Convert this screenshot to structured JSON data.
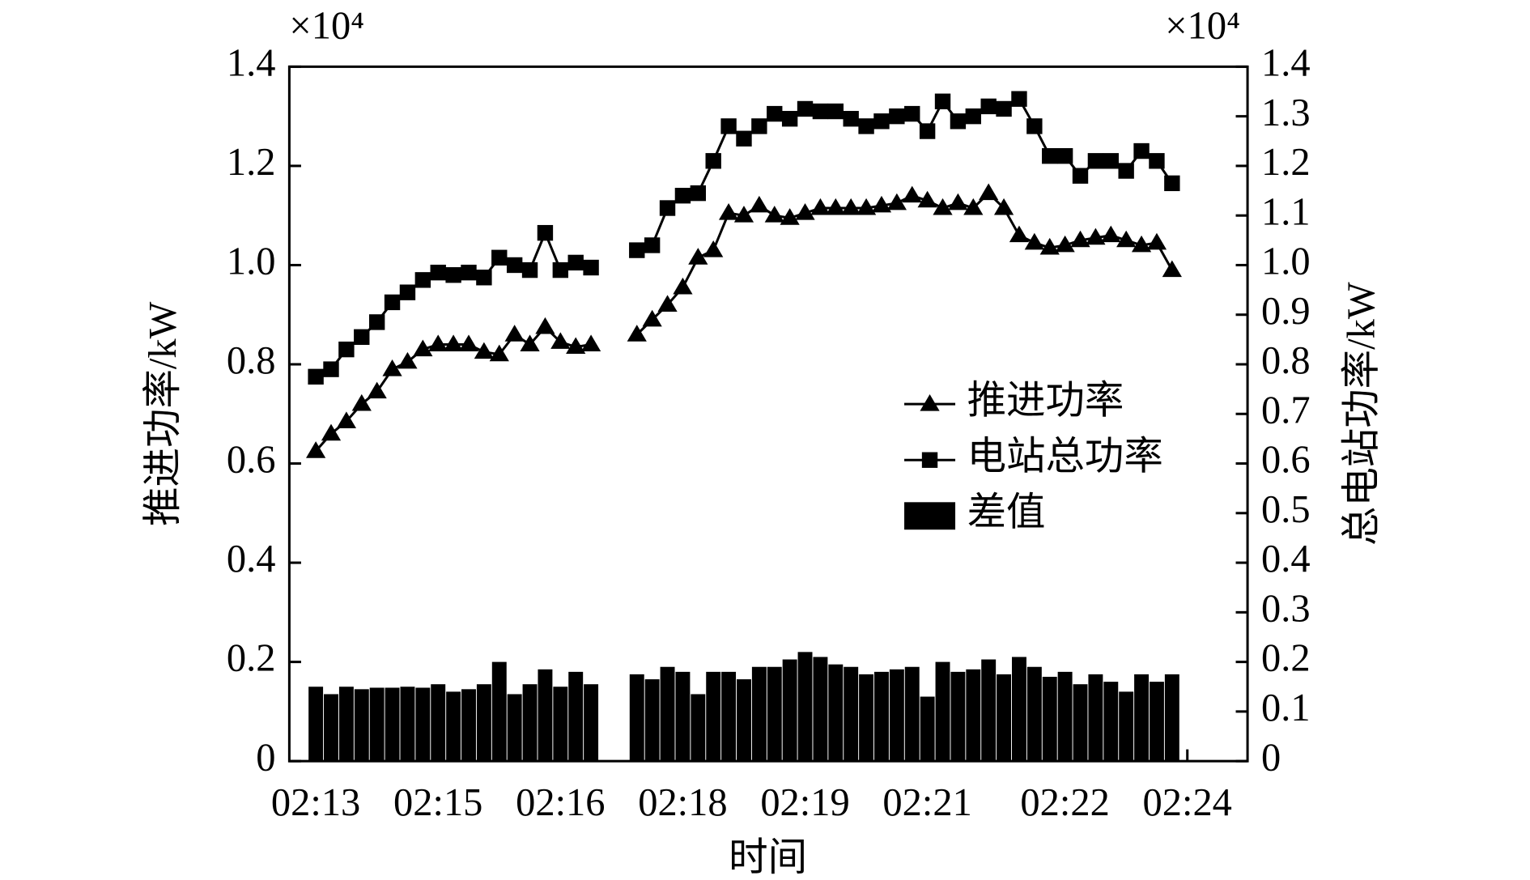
{
  "chart_data": {
    "type": "combo",
    "y_multiplier": "×10⁴",
    "y2_multiplier": "×10⁴",
    "xlabel": "时间",
    "ylabel": "推进功率/kW",
    "y2label": "总电站功率/kW",
    "legend_loc": "center right",
    "categories": [
      "02:13",
      null,
      null,
      null,
      null,
      null,
      null,
      null,
      "02:15",
      null,
      null,
      null,
      null,
      null,
      null,
      null,
      "02:16",
      null,
      null,
      null,
      null,
      null,
      null,
      null,
      "02:18",
      null,
      null,
      null,
      null,
      null,
      null,
      null,
      "02:19",
      null,
      null,
      null,
      null,
      null,
      null,
      null,
      "02:21",
      null,
      null,
      null,
      null,
      null,
      null,
      null,
      null,
      "02:22",
      null,
      null,
      null,
      null,
      null,
      null,
      null,
      "02:24"
    ],
    "series": [
      {
        "name": "推进功率",
        "type": "line",
        "marker": "triangle",
        "color": "#000000",
        "values": [
          0.625,
          0.66,
          0.685,
          0.72,
          0.745,
          0.79,
          0.805,
          0.83,
          0.84,
          0.84,
          0.84,
          0.825,
          0.82,
          0.86,
          0.84,
          0.875,
          0.845,
          0.835,
          0.84,
          null,
          null,
          0.86,
          0.89,
          0.92,
          0.955,
          1.015,
          1.03,
          1.105,
          1.1,
          1.12,
          1.1,
          1.095,
          1.105,
          1.115,
          1.115,
          1.115,
          1.115,
          1.12,
          1.125,
          1.14,
          1.13,
          1.115,
          1.125,
          1.115,
          1.145,
          1.115,
          1.06,
          1.045,
          1.035,
          1.04,
          1.05,
          1.055,
          1.06,
          1.05,
          1.04,
          1.045,
          0.99,
          null
        ]
      },
      {
        "name": "电站总功率",
        "type": "line",
        "marker": "square",
        "color": "#000000",
        "axis": "y2",
        "values": [
          0.775,
          0.79,
          0.83,
          0.855,
          0.885,
          0.925,
          0.945,
          0.97,
          0.985,
          0.98,
          0.985,
          0.975,
          1.015,
          1.0,
          0.99,
          1.065,
          0.99,
          1.005,
          0.995,
          null,
          null,
          1.03,
          1.04,
          1.115,
          1.14,
          1.145,
          1.21,
          1.28,
          1.255,
          1.28,
          1.305,
          1.295,
          1.315,
          1.31,
          1.31,
          1.295,
          1.28,
          1.29,
          1.3,
          1.305,
          1.27,
          1.33,
          1.29,
          1.3,
          1.32,
          1.315,
          1.335,
          1.28,
          1.22,
          1.22,
          1.18,
          1.21,
          1.21,
          1.19,
          1.23,
          1.21,
          1.165,
          null
        ]
      },
      {
        "name": "差值",
        "type": "bar",
        "color": "#000000",
        "values": [
          0.15,
          0.135,
          0.15,
          0.145,
          0.148,
          0.148,
          0.15,
          0.148,
          0.155,
          0.14,
          0.145,
          0.155,
          0.2,
          0.135,
          0.155,
          0.185,
          0.15,
          0.18,
          0.155,
          null,
          null,
          0.175,
          0.165,
          0.19,
          0.18,
          0.135,
          0.18,
          0.18,
          0.165,
          0.19,
          0.19,
          0.205,
          0.22,
          0.21,
          0.195,
          0.19,
          0.175,
          0.18,
          0.185,
          0.19,
          0.13,
          0.2,
          0.18,
          0.185,
          0.205,
          0.175,
          0.21,
          0.19,
          0.17,
          0.18,
          0.155,
          0.175,
          0.16,
          0.14,
          0.175,
          0.16,
          0.175,
          null
        ]
      }
    ],
    "ylim": [
      0,
      1.4
    ],
    "yticks": [
      0,
      0.2,
      0.4,
      0.6,
      0.8,
      {
        "value": 1.0,
        "label": "1.0"
      },
      1.2,
      1.4
    ],
    "y2lim": [
      0,
      1.4
    ],
    "y2ticks": [
      0,
      0.1,
      0.2,
      0.3,
      0.4,
      0.5,
      0.6,
      0.7,
      0.8,
      0.9,
      {
        "value": 1.0,
        "label": "1.0"
      },
      1.1,
      1.2,
      1.3,
      1.4
    ]
  }
}
